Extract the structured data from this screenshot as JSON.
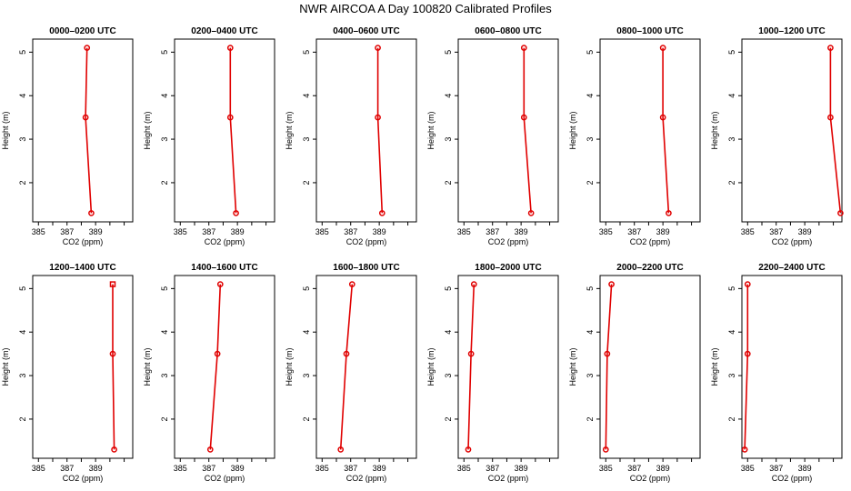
{
  "figure": {
    "title": "NWR AIRCOA A  Day 100820  Calibrated Profiles"
  },
  "chart_data": {
    "type": "line",
    "xlabel": "CO2 (ppm)",
    "ylabel": "Height (m)",
    "xlim": [
      384.6,
      391.6
    ],
    "ylim": [
      1.1,
      5.3
    ],
    "xticks": [
      385,
      386,
      387,
      388,
      389,
      390,
      391
    ],
    "xtick_labels": [
      "385",
      "",
      "387",
      "",
      "389",
      "",
      ""
    ],
    "yticks": [
      2,
      3,
      4,
      5
    ],
    "ytick_labels": [
      "2",
      "3",
      "4",
      "5"
    ],
    "grid": false,
    "panels": [
      {
        "title": "0000–0200 UTC",
        "points": [
          {
            "x": 388.4,
            "y": 5.1
          },
          {
            "x": 388.3,
            "y": 3.5
          },
          {
            "x": 388.7,
            "y": 1.3
          }
        ]
      },
      {
        "title": "0200–0400 UTC",
        "points": [
          {
            "x": 388.5,
            "y": 5.1
          },
          {
            "x": 388.5,
            "y": 3.5
          },
          {
            "x": 388.9,
            "y": 1.3
          }
        ]
      },
      {
        "title": "0400–0600 UTC",
        "points": [
          {
            "x": 388.9,
            "y": 5.1
          },
          {
            "x": 388.9,
            "y": 3.5
          },
          {
            "x": 389.2,
            "y": 1.3
          }
        ]
      },
      {
        "title": "0600–0800 UTC",
        "points": [
          {
            "x": 389.2,
            "y": 5.1
          },
          {
            "x": 389.2,
            "y": 3.5
          },
          {
            "x": 389.7,
            "y": 1.3
          }
        ]
      },
      {
        "title": "0800–1000 UTC",
        "points": [
          {
            "x": 389.0,
            "y": 5.1
          },
          {
            "x": 389.0,
            "y": 3.5
          },
          {
            "x": 389.4,
            "y": 1.3
          }
        ]
      },
      {
        "title": "1000–1200 UTC",
        "points": [
          {
            "x": 390.8,
            "y": 5.1
          },
          {
            "x": 390.8,
            "y": 3.5
          },
          {
            "x": 391.5,
            "y": 1.3
          }
        ]
      },
      {
        "title": "1200–1400 UTC",
        "points": [
          {
            "x": 390.2,
            "y": 5.1
          },
          {
            "x": 390.2,
            "y": 3.5
          },
          {
            "x": 390.3,
            "y": 1.3
          }
        ]
      },
      {
        "title": "1400–1600 UTC",
        "points": [
          {
            "x": 387.8,
            "y": 5.1
          },
          {
            "x": 387.6,
            "y": 3.5
          },
          {
            "x": 387.1,
            "y": 1.3
          }
        ]
      },
      {
        "title": "1600–1800 UTC",
        "points": [
          {
            "x": 387.1,
            "y": 5.1
          },
          {
            "x": 386.7,
            "y": 3.5
          },
          {
            "x": 386.3,
            "y": 1.3
          }
        ]
      },
      {
        "title": "1800–2000 UTC",
        "points": [
          {
            "x": 385.7,
            "y": 5.1
          },
          {
            "x": 385.5,
            "y": 3.5
          },
          {
            "x": 385.3,
            "y": 1.3
          }
        ]
      },
      {
        "title": "2000–2200 UTC",
        "points": [
          {
            "x": 385.4,
            "y": 5.1
          },
          {
            "x": 385.1,
            "y": 3.5
          },
          {
            "x": 385.0,
            "y": 1.3
          }
        ]
      },
      {
        "title": "2200–2400 UTC",
        "points": [
          {
            "x": 385.0,
            "y": 5.1
          },
          {
            "x": 385.0,
            "y": 3.5
          },
          {
            "x": 384.8,
            "y": 1.3
          }
        ]
      }
    ]
  }
}
